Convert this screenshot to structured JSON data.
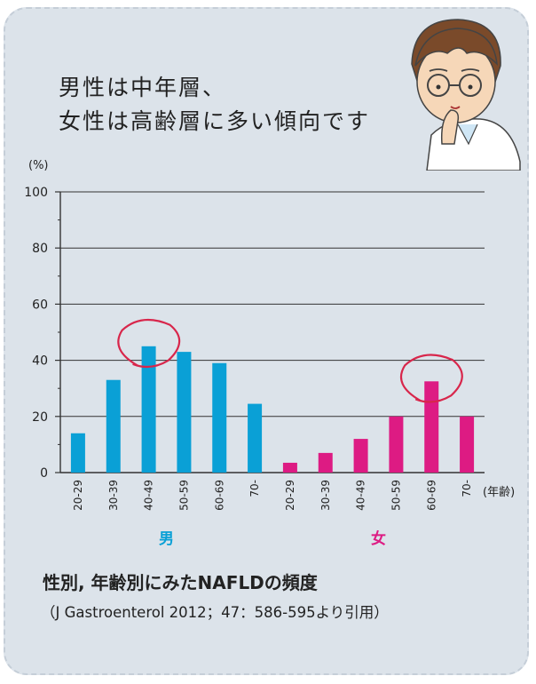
{
  "headline": {
    "line1": "男性は中年層、",
    "line2": "女性は高齢層に多い傾向です"
  },
  "caption": {
    "title": "性別, 年齢別にみたNAFLDの頻度",
    "source": "（J Gastroenterol 2012；47：586-595より引用）"
  },
  "colors": {
    "male": "#0aa0d6",
    "female": "#dd1b83",
    "highlight_circle": "#d8264b",
    "background": "#dce3ea"
  },
  "icons": {
    "illustration": "doctor-thinking-icon"
  },
  "chart_data": {
    "type": "bar",
    "ylabel": "(%)",
    "xlabel": "(年齢)",
    "ylim": [
      0,
      100
    ],
    "yticks": [
      0,
      20,
      40,
      60,
      80,
      100
    ],
    "grid": true,
    "groups": [
      {
        "name": "男",
        "color": "#0aa0d6",
        "categories": [
          "20-29",
          "30-39",
          "40-49",
          "50-59",
          "60-69",
          "70-"
        ],
        "values": [
          14,
          33,
          45,
          43,
          39,
          24.5
        ],
        "highlight": "40-49"
      },
      {
        "name": "女",
        "color": "#dd1b83",
        "categories": [
          "20-29",
          "30-39",
          "40-49",
          "50-59",
          "60-69",
          "70-"
        ],
        "values": [
          3.5,
          7,
          12,
          20,
          32.5,
          20
        ],
        "highlight": "60-69"
      }
    ]
  }
}
